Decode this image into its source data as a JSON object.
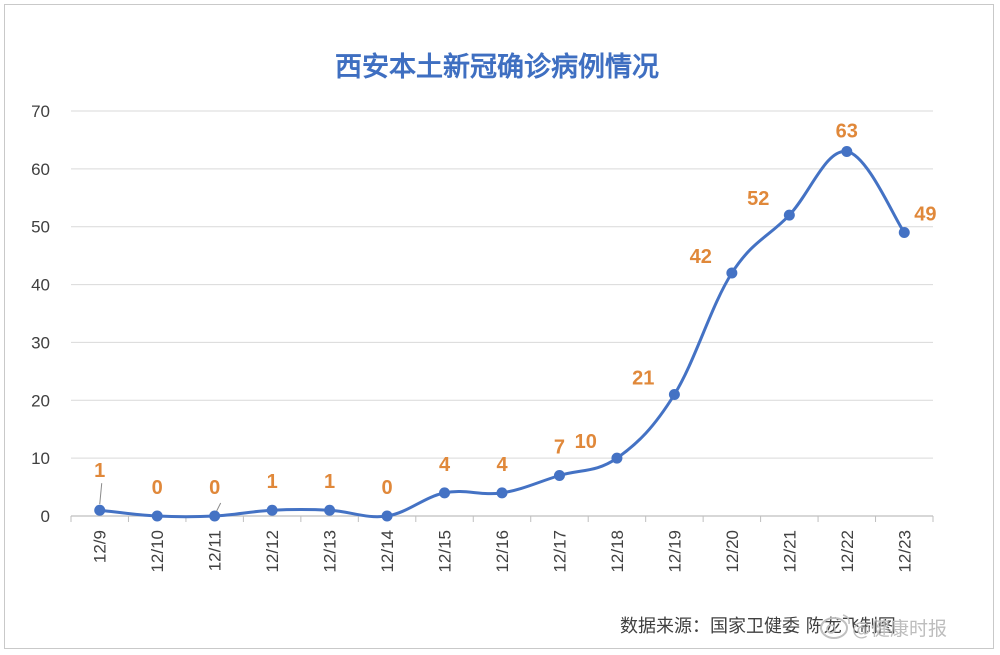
{
  "chart_data": {
    "type": "line",
    "title": "西安本土新冠确诊病例情况",
    "xlabel": "",
    "ylabel": "",
    "categories": [
      "12/9",
      "12/10",
      "12/11",
      "12/12",
      "12/13",
      "12/14",
      "12/15",
      "12/16",
      "12/17",
      "12/18",
      "12/19",
      "12/20",
      "12/21",
      "12/22",
      "12/23"
    ],
    "series": [
      {
        "values": [
          1,
          0,
          0,
          1,
          1,
          0,
          4,
          4,
          7,
          10,
          21,
          42,
          52,
          63,
          49
        ]
      }
    ],
    "ylim": [
      0,
      70
    ],
    "yticks": [
      0,
      10,
      20,
      30,
      40,
      50,
      60,
      70
    ],
    "grid": true,
    "legend": "none",
    "line_color": "#4472c4",
    "label_color": "#e0883a",
    "title_color": "#3f6fc1"
  },
  "source_note": "数据来源：国家卫健委  陈龙飞制图",
  "watermark": "@健康时报"
}
